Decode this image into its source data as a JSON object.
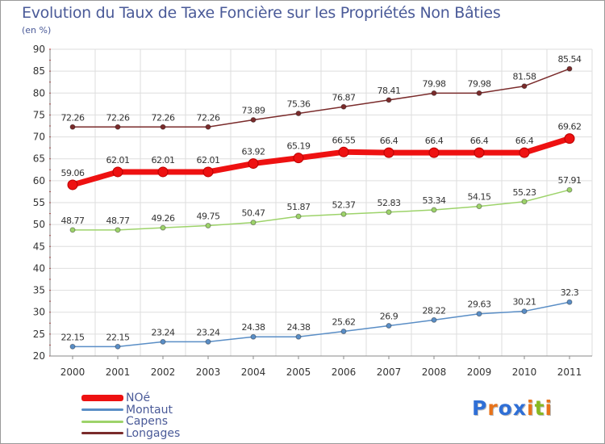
{
  "title": "Evolution du Taux de Taxe Foncière sur les Propriétés Non Bâties",
  "unit_label": "(en %)",
  "logo": {
    "letters": [
      "P",
      "r",
      "o",
      "x",
      "i",
      "t",
      "i"
    ],
    "colors": [
      "#2f6fd6",
      "#e8731a",
      "#2f6fd6",
      "#2f6fd6",
      "#e8731a",
      "#88b820",
      "#e8731a"
    ]
  },
  "chart_data": {
    "type": "line",
    "categories": [
      "2000",
      "2001",
      "2002",
      "2003",
      "2004",
      "2005",
      "2006",
      "2007",
      "2008",
      "2009",
      "2010",
      "2011"
    ],
    "ylim": [
      20,
      90
    ],
    "yticks": [
      "20",
      "25",
      "30",
      "35",
      "40",
      "45",
      "50",
      "55",
      "60",
      "65",
      "70",
      "75",
      "80",
      "85",
      "90"
    ],
    "grid": true,
    "legend_position": "bottom-left",
    "series": [
      {
        "name": "NOé",
        "color": "#ee1111",
        "highlight": true,
        "values": [
          59.06,
          62.01,
          62.01,
          62.01,
          63.92,
          65.19,
          66.55,
          66.4,
          66.4,
          66.4,
          66.4,
          69.62
        ],
        "labels": [
          "59.06",
          "62.01",
          "62.01",
          "62.01",
          "63.92",
          "65.19",
          "66.55",
          "66.4",
          "66.4",
          "66.4",
          "66.4",
          "69.62"
        ]
      },
      {
        "name": "Montaut",
        "color": "#5a8ec6",
        "highlight": false,
        "values": [
          22.15,
          22.15,
          23.24,
          23.24,
          24.38,
          24.38,
          25.62,
          26.9,
          28.22,
          29.63,
          30.21,
          32.3
        ],
        "labels": [
          "22.15",
          "22.15",
          "23.24",
          "23.24",
          "24.38",
          "24.38",
          "25.62",
          "26.9",
          "28.22",
          "29.63",
          "30.21",
          "32.3"
        ]
      },
      {
        "name": "Capens",
        "color": "#9dd36a",
        "highlight": false,
        "values": [
          48.77,
          48.77,
          49.26,
          49.75,
          50.47,
          51.87,
          52.37,
          52.83,
          53.34,
          54.15,
          55.23,
          57.91
        ],
        "labels": [
          "48.77",
          "48.77",
          "49.26",
          "49.75",
          "50.47",
          "51.87",
          "52.37",
          "52.83",
          "53.34",
          "54.15",
          "55.23",
          "57.91"
        ]
      },
      {
        "name": "Longages",
        "color": "#7a2b2b",
        "highlight": false,
        "values": [
          72.26,
          72.26,
          72.26,
          72.26,
          73.89,
          75.36,
          76.87,
          78.41,
          79.98,
          79.98,
          81.58,
          85.54
        ],
        "labels": [
          "72.26",
          "72.26",
          "72.26",
          "72.26",
          "73.89",
          "75.36",
          "76.87",
          "78.41",
          "79.98",
          "79.98",
          "81.58",
          "85.54"
        ]
      }
    ]
  }
}
